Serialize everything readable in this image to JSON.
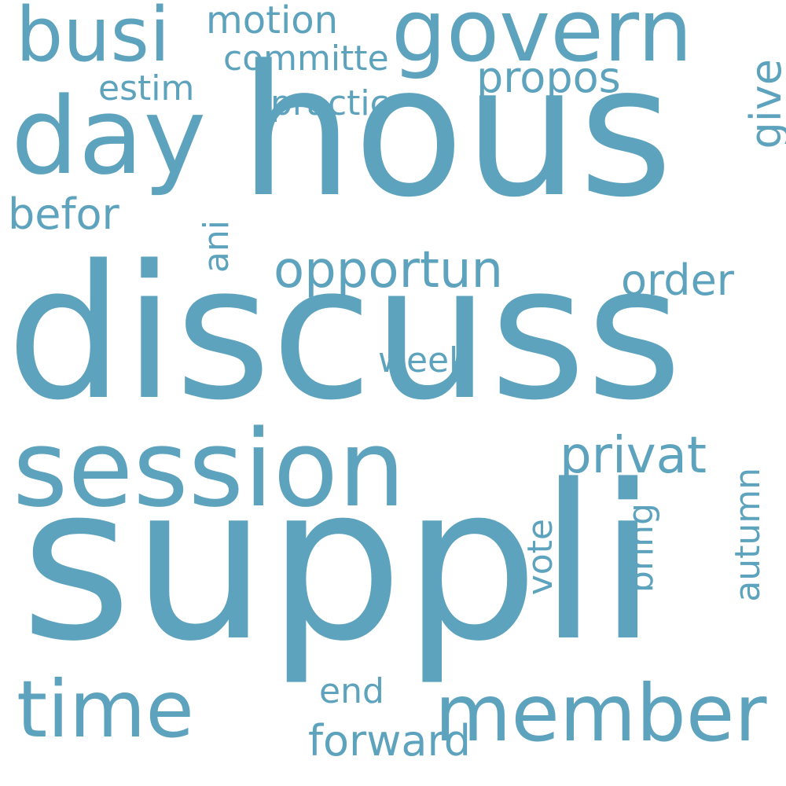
{
  "word_color": "#5ea3bd",
  "background_color": "#ffffff",
  "words": [
    {
      "key": "suppli",
      "text": "suppli"
    },
    {
      "key": "discuss",
      "text": "discuss"
    },
    {
      "key": "hous",
      "text": "hous"
    },
    {
      "key": "session",
      "text": "session"
    },
    {
      "key": "day",
      "text": "day"
    },
    {
      "key": "govern",
      "text": "govern"
    },
    {
      "key": "member",
      "text": "member"
    },
    {
      "key": "time",
      "text": "time"
    },
    {
      "key": "busi",
      "text": "busi"
    },
    {
      "key": "opportun",
      "text": "opportun"
    },
    {
      "key": "privat",
      "text": "privat"
    },
    {
      "key": "propos",
      "text": "propos"
    },
    {
      "key": "order",
      "text": "order"
    },
    {
      "key": "befor",
      "text": "befor"
    },
    {
      "key": "motion",
      "text": "motion"
    },
    {
      "key": "practic",
      "text": "practic"
    },
    {
      "key": "committe",
      "text": "committe"
    },
    {
      "key": "estim",
      "text": "estim"
    },
    {
      "key": "week",
      "text": "week"
    },
    {
      "key": "forward",
      "text": "forward"
    },
    {
      "key": "end",
      "text": "end"
    },
    {
      "key": "give",
      "text": "give"
    },
    {
      "key": "ani",
      "text": "ani"
    },
    {
      "key": "vote",
      "text": "vote"
    },
    {
      "key": "bring",
      "text": "bring"
    },
    {
      "key": "autumn",
      "text": "autumn"
    }
  ]
}
